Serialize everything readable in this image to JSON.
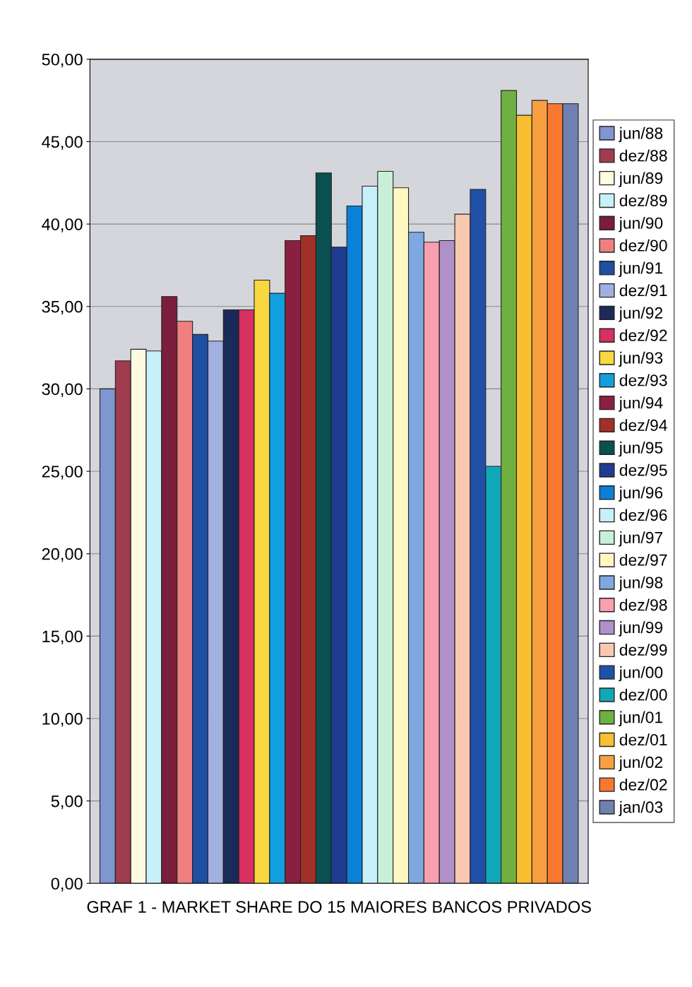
{
  "chart_data": {
    "type": "bar",
    "xlabel": "GRAF 1 - MARKET SHARE DO 15 MAIORES BANCOS PRIVADOS",
    "categories": [
      null
    ],
    "series": [
      {
        "name": "jun/88",
        "color": "#8096d0",
        "values": [
          30.0
        ]
      },
      {
        "name": "dez/88",
        "color": "#a03c50",
        "values": [
          31.7
        ]
      },
      {
        "name": "jun/89",
        "color": "#fffbe0",
        "values": [
          32.4
        ]
      },
      {
        "name": "dez/89",
        "color": "#c8f0f8",
        "values": [
          32.3
        ]
      },
      {
        "name": "jun/90",
        "color": "#7a1e3c",
        "values": [
          35.6
        ]
      },
      {
        "name": "dez/90",
        "color": "#f08080",
        "values": [
          34.1
        ]
      },
      {
        "name": "jun/91",
        "color": "#1f4fa0",
        "values": [
          33.3
        ]
      },
      {
        "name": "dez/91",
        "color": "#a0b0e0",
        "values": [
          32.9
        ]
      },
      {
        "name": "jun/92",
        "color": "#1c2a5a",
        "values": [
          34.8
        ]
      },
      {
        "name": "dez/92",
        "color": "#d83060",
        "values": [
          34.8
        ]
      },
      {
        "name": "jun/93",
        "color": "#f8d840",
        "values": [
          36.6
        ]
      },
      {
        "name": "dez/93",
        "color": "#10a0e0",
        "values": [
          35.8
        ]
      },
      {
        "name": "jun/94",
        "color": "#8a2040",
        "values": [
          39.0
        ]
      },
      {
        "name": "dez/94",
        "color": "#a03028",
        "values": [
          39.3
        ]
      },
      {
        "name": "jun/95",
        "color": "#0a5050",
        "values": [
          43.1
        ]
      },
      {
        "name": "dez/95",
        "color": "#203c90",
        "values": [
          38.6
        ]
      },
      {
        "name": "jun/96",
        "color": "#0a80d8",
        "values": [
          41.1
        ]
      },
      {
        "name": "dez/96",
        "color": "#c8f0fa",
        "values": [
          42.3
        ]
      },
      {
        "name": "jun/97",
        "color": "#c8f0d8",
        "values": [
          43.2
        ]
      },
      {
        "name": "dez/97",
        "color": "#fff8c0",
        "values": [
          42.2
        ]
      },
      {
        "name": "jun/98",
        "color": "#80a8e0",
        "values": [
          39.5
        ]
      },
      {
        "name": "dez/98",
        "color": "#f8a0b0",
        "values": [
          38.9
        ]
      },
      {
        "name": "jun/99",
        "color": "#b090c8",
        "values": [
          39.0
        ]
      },
      {
        "name": "dez/99",
        "color": "#f8c8b0",
        "values": [
          40.6
        ]
      },
      {
        "name": "jun/00",
        "color": "#2050a8",
        "values": [
          42.1
        ]
      },
      {
        "name": "dez/00",
        "color": "#10a8b8",
        "values": [
          25.3
        ]
      },
      {
        "name": "jun/01",
        "color": "#70b040",
        "values": [
          48.1
        ]
      },
      {
        "name": "dez/01",
        "color": "#f8c030",
        "values": [
          46.6
        ]
      },
      {
        "name": "jun/02",
        "color": "#f8a040",
        "values": [
          47.5
        ]
      },
      {
        "name": "dez/02",
        "color": "#f87830",
        "values": [
          47.3
        ]
      },
      {
        "name": "jan/03",
        "color": "#7080b0",
        "values": [
          47.3
        ]
      }
    ],
    "ylim": [
      0,
      50
    ],
    "yticks": [
      {
        "value": 0,
        "label": "0,00"
      },
      {
        "value": 5,
        "label": "5,00"
      },
      {
        "value": 10,
        "label": "10,00"
      },
      {
        "value": 15,
        "label": "15,00"
      },
      {
        "value": 20,
        "label": "20,00"
      },
      {
        "value": 25,
        "label": "25,00"
      },
      {
        "value": 30,
        "label": "30,00"
      },
      {
        "value": 35,
        "label": "35,00"
      },
      {
        "value": 40,
        "label": "40,00"
      },
      {
        "value": 45,
        "label": "45,00"
      },
      {
        "value": 50,
        "label": "50,00"
      }
    ],
    "grid": "y",
    "legend": "right"
  }
}
